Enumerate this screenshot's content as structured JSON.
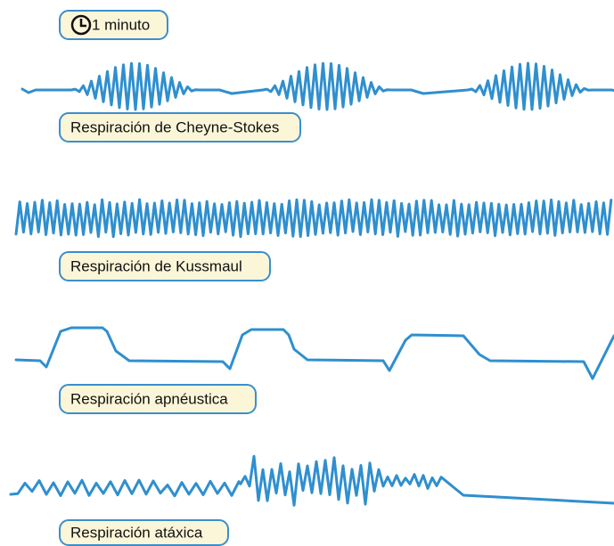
{
  "time_scale": {
    "label": "1 minuto"
  },
  "patterns": [
    {
      "label": "Respiración de Cheyne-Stokes"
    },
    {
      "label": "Respiración de Kussmaul"
    },
    {
      "label": "Respiración apnéustica"
    },
    {
      "label": "Respiración atáxica"
    }
  ]
}
